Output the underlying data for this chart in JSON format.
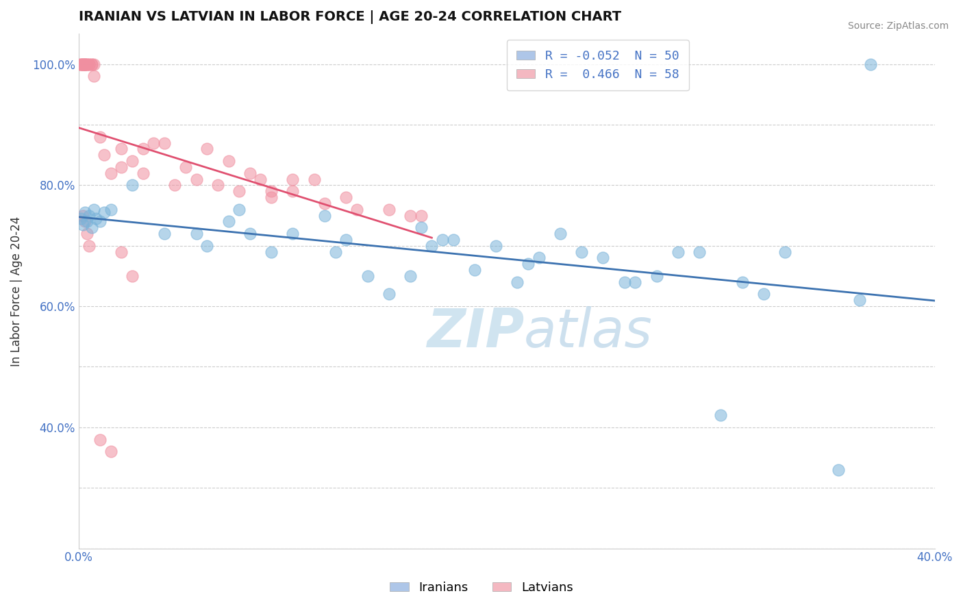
{
  "title": "IRANIAN VS LATVIAN IN LABOR FORCE | AGE 20-24 CORRELATION CHART",
  "source_text": "Source: ZipAtlas.com",
  "ylabel": "In Labor Force | Age 20-24",
  "xlim": [
    0.0,
    0.4
  ],
  "ylim": [
    0.2,
    1.05
  ],
  "iranians_color": "#7ab3d9",
  "latvians_color": "#f08fa0",
  "watermark_color": "#d0e4f0",
  "background_color": "#ffffff",
  "grid_color": "#cccccc",
  "iranian_trendline_color": "#3c72b0",
  "latvian_trendline_color": "#e05070",
  "tick_label_color": "#4472c4",
  "legend_blue": "#aec6e8",
  "legend_pink": "#f4b8c1",
  "iranians_x": [
    0.001,
    0.002,
    0.003,
    0.004,
    0.005,
    0.006,
    0.007,
    0.008,
    0.01,
    0.012,
    0.015,
    0.025,
    0.04,
    0.055,
    0.06,
    0.07,
    0.075,
    0.08,
    0.09,
    0.1,
    0.115,
    0.12,
    0.125,
    0.135,
    0.145,
    0.155,
    0.16,
    0.165,
    0.17,
    0.175,
    0.185,
    0.195,
    0.205,
    0.21,
    0.215,
    0.225,
    0.235,
    0.245,
    0.255,
    0.26,
    0.27,
    0.28,
    0.29,
    0.3,
    0.31,
    0.32,
    0.33,
    0.355,
    0.365,
    0.37
  ],
  "iranians_y": [
    0.745,
    0.735,
    0.755,
    0.74,
    0.75,
    0.73,
    0.76,
    0.745,
    0.74,
    0.755,
    0.76,
    0.8,
    0.72,
    0.72,
    0.7,
    0.74,
    0.76,
    0.72,
    0.69,
    0.72,
    0.75,
    0.69,
    0.71,
    0.65,
    0.62,
    0.65,
    0.73,
    0.7,
    0.71,
    0.71,
    0.66,
    0.7,
    0.64,
    0.67,
    0.68,
    0.72,
    0.69,
    0.68,
    0.64,
    0.64,
    0.65,
    0.69,
    0.69,
    0.42,
    0.64,
    0.62,
    0.69,
    0.33,
    0.61,
    1.0
  ],
  "latvians_x": [
    0.001,
    0.001,
    0.001,
    0.002,
    0.002,
    0.002,
    0.002,
    0.003,
    0.003,
    0.003,
    0.003,
    0.003,
    0.004,
    0.004,
    0.005,
    0.005,
    0.006,
    0.006,
    0.007,
    0.007,
    0.02,
    0.03,
    0.04,
    0.05,
    0.06,
    0.07,
    0.08,
    0.09,
    0.1,
    0.11,
    0.01,
    0.012,
    0.015,
    0.02,
    0.025,
    0.03,
    0.035,
    0.045,
    0.055,
    0.065,
    0.075,
    0.085,
    0.09,
    0.1,
    0.115,
    0.125,
    0.13,
    0.145,
    0.155,
    0.16,
    0.002,
    0.003,
    0.004,
    0.005,
    0.01,
    0.015,
    0.02,
    0.025
  ],
  "latvians_y": [
    1.0,
    1.0,
    1.0,
    1.0,
    1.0,
    1.0,
    1.0,
    1.0,
    1.0,
    1.0,
    1.0,
    1.0,
    1.0,
    1.0,
    1.0,
    1.0,
    1.0,
    1.0,
    1.0,
    0.98,
    0.86,
    0.82,
    0.87,
    0.83,
    0.86,
    0.84,
    0.82,
    0.79,
    0.81,
    0.81,
    0.88,
    0.85,
    0.82,
    0.83,
    0.84,
    0.86,
    0.87,
    0.8,
    0.81,
    0.8,
    0.79,
    0.81,
    0.78,
    0.79,
    0.77,
    0.78,
    0.76,
    0.76,
    0.75,
    0.75,
    0.75,
    0.74,
    0.72,
    0.7,
    0.38,
    0.36,
    0.69,
    0.65
  ]
}
